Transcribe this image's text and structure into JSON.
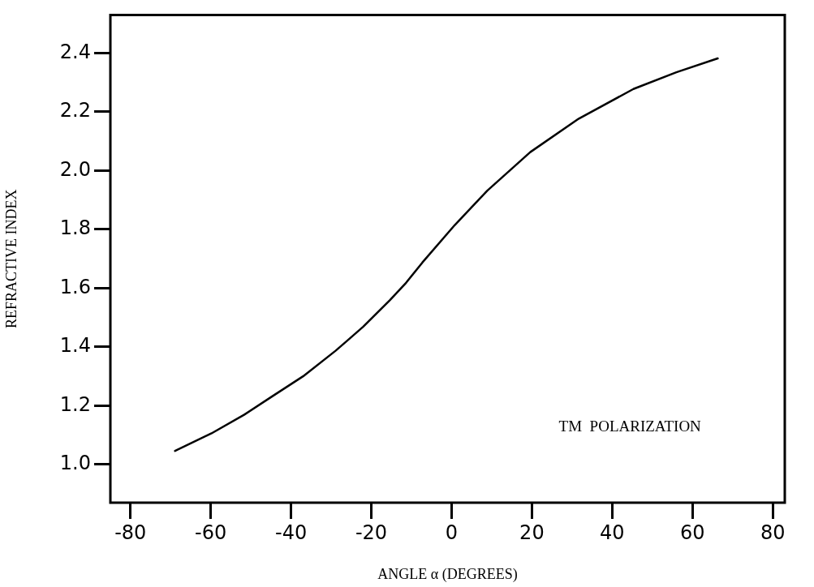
{
  "chart_data": {
    "type": "line",
    "xlabel": "ANGLE α (DEGREES)",
    "ylabel": "REFRACTIVE INDEX",
    "annotations": [
      "TM  POLARIZATION"
    ],
    "x": [
      -68.9,
      -59.8,
      -51.7,
      -45,
      -37,
      -28.9,
      -26.1,
      -22,
      -15.4,
      -11.3,
      -7.3,
      0.8,
      8.9,
      19.6,
      31.7,
      45.3,
      56,
      66.3
    ],
    "values": [
      1.046,
      1.106,
      1.169,
      1.229,
      1.3,
      1.387,
      1.42,
      1.469,
      1.559,
      1.619,
      1.687,
      1.815,
      1.932,
      2.063,
      2.177,
      2.278,
      2.335,
      2.382
    ],
    "color": "#000000",
    "xlim": [
      -85,
      83
    ],
    "ylim": [
      0.87,
      2.53
    ],
    "xticks": [
      -80,
      -60,
      -40,
      -20,
      0,
      20,
      40,
      60,
      80
    ],
    "yticks": [
      {
        "value": 1,
        "label": "1.0"
      },
      1.2,
      1.4,
      1.6,
      1.8,
      {
        "value": 2,
        "label": "2.0"
      },
      2.2,
      2.4
    ],
    "grid": false,
    "legend": false,
    "marker": "none",
    "line_style": "solid"
  }
}
